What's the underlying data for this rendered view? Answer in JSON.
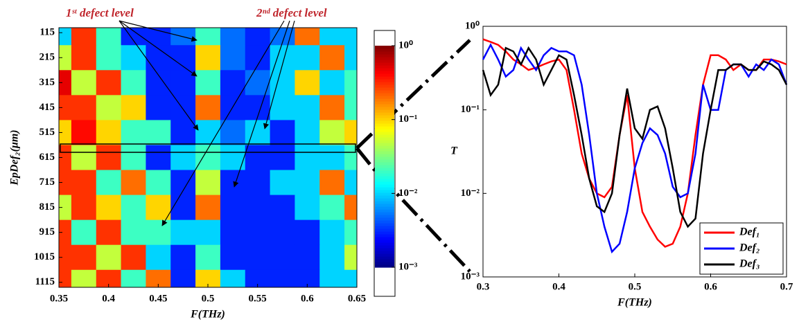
{
  "chart_data": [
    {
      "type": "heatmap",
      "x": [
        0.35,
        0.375,
        0.4,
        0.425,
        0.45,
        0.475,
        0.5,
        0.525,
        0.55,
        0.575,
        0.6,
        0.625,
        0.65
      ],
      "y": [
        115,
        215,
        315,
        415,
        515,
        615,
        715,
        815,
        915,
        1015,
        1115
      ],
      "z": [
        [
          0.01,
          0.3,
          0.02,
          0.003,
          0.003,
          0.005,
          0.02,
          0.005,
          0.003,
          0.005,
          0.2,
          0.01,
          0.01
        ],
        [
          0.05,
          0.3,
          0.02,
          0.01,
          0.003,
          0.003,
          0.1,
          0.005,
          0.003,
          0.01,
          0.01,
          0.2,
          0.01
        ],
        [
          0.5,
          0.05,
          0.3,
          0.02,
          0.003,
          0.003,
          0.02,
          0.003,
          0.005,
          0.01,
          0.1,
          0.01,
          0.02
        ],
        [
          0.3,
          0.3,
          0.05,
          0.1,
          0.003,
          0.003,
          0.2,
          0.003,
          0.003,
          0.01,
          0.01,
          0.2,
          0.02
        ],
        [
          0.1,
          0.4,
          0.1,
          0.02,
          0.02,
          0.003,
          0.01,
          0.005,
          0.01,
          0.003,
          0.01,
          0.05,
          0.1
        ],
        [
          0.3,
          0.05,
          0.3,
          0.02,
          0.003,
          0.01,
          0.02,
          0.01,
          0.003,
          0.003,
          0.01,
          0.01,
          0.02
        ],
        [
          0.3,
          0.3,
          0.02,
          0.2,
          0.02,
          0.003,
          0.05,
          0.003,
          0.003,
          0.01,
          0.01,
          0.2,
          0.01
        ],
        [
          0.05,
          0.3,
          0.1,
          0.02,
          0.1,
          0.003,
          0.2,
          0.003,
          0.003,
          0.003,
          0.01,
          0.02,
          0.2
        ],
        [
          0.3,
          0.02,
          0.3,
          0.02,
          0.02,
          0.01,
          0.01,
          0.003,
          0.003,
          0.003,
          0.003,
          0.01,
          0.02
        ],
        [
          0.3,
          0.3,
          0.05,
          0.3,
          0.01,
          0.003,
          0.02,
          0.003,
          0.003,
          0.003,
          0.003,
          0.01,
          0.05
        ],
        [
          0.3,
          0.05,
          0.3,
          0.02,
          0.2,
          0.003,
          0.1,
          0.01,
          0.003,
          0.003,
          0.003,
          0.01,
          0.01
        ]
      ],
      "xlim": [
        0.35,
        0.65
      ],
      "xticks": [
        0.35,
        0.4,
        0.45,
        0.5,
        0.55,
        0.6,
        0.65
      ],
      "ylim": [
        95,
        1135
      ],
      "y_inverted": true,
      "yticks": [
        115,
        215,
        315,
        415,
        515,
        615,
        715,
        815,
        915,
        1015,
        1115
      ],
      "x_label": "F(THz)",
      "y_label": "EpDef₂(μm)",
      "colormap": "jet",
      "colorbar": {
        "lim": [
          0.001,
          1
        ],
        "log": true,
        "ticks": [
          {
            "value": 1,
            "label": "10⁰"
          },
          {
            "value": 0.1,
            "label": "10⁻¹"
          },
          {
            "value": 0.01,
            "label": "10⁻²"
          },
          {
            "value": 0.001,
            "label": "10⁻³"
          }
        ]
      },
      "annotations": [
        "1ˢᵗ defect level",
        "2ⁿᵈ defect level"
      ]
    },
    {
      "type": "line",
      "x": [
        0.3,
        0.31,
        0.32,
        0.33,
        0.34,
        0.35,
        0.36,
        0.37,
        0.38,
        0.39,
        0.4,
        0.41,
        0.42,
        0.43,
        0.44,
        0.45,
        0.46,
        0.47,
        0.48,
        0.49,
        0.5,
        0.51,
        0.52,
        0.53,
        0.54,
        0.55,
        0.56,
        0.57,
        0.58,
        0.59,
        0.6,
        0.61,
        0.62,
        0.63,
        0.64,
        0.65,
        0.66,
        0.67,
        0.68,
        0.69,
        0.7
      ],
      "series": [
        {
          "name": "Def₁",
          "color": "#ff0000",
          "values": [
            0.7,
            0.65,
            0.6,
            0.5,
            0.4,
            0.35,
            0.3,
            0.32,
            0.35,
            0.38,
            0.4,
            0.3,
            0.1,
            0.03,
            0.015,
            0.01,
            0.009,
            0.012,
            0.05,
            0.15,
            0.02,
            0.006,
            0.004,
            0.0028,
            0.0023,
            0.0025,
            0.004,
            0.01,
            0.05,
            0.2,
            0.45,
            0.45,
            0.4,
            0.3,
            0.35,
            0.3,
            0.3,
            0.4,
            0.4,
            0.38,
            0.35
          ]
        },
        {
          "name": "Def₂",
          "color": "#0000ff",
          "values": [
            0.4,
            0.6,
            0.4,
            0.25,
            0.3,
            0.55,
            0.4,
            0.3,
            0.45,
            0.55,
            0.5,
            0.5,
            0.45,
            0.2,
            0.05,
            0.01,
            0.004,
            0.002,
            0.0025,
            0.006,
            0.02,
            0.04,
            0.06,
            0.05,
            0.03,
            0.012,
            0.009,
            0.01,
            0.03,
            0.2,
            0.1,
            0.1,
            0.3,
            0.35,
            0.35,
            0.25,
            0.35,
            0.3,
            0.4,
            0.35,
            0.2
          ]
        },
        {
          "name": "Def₃",
          "color": "#000000",
          "values": [
            0.3,
            0.15,
            0.2,
            0.55,
            0.5,
            0.35,
            0.55,
            0.4,
            0.2,
            0.3,
            0.45,
            0.4,
            0.15,
            0.05,
            0.015,
            0.007,
            0.006,
            0.01,
            0.05,
            0.18,
            0.06,
            0.045,
            0.1,
            0.11,
            0.06,
            0.02,
            0.006,
            0.004,
            0.005,
            0.03,
            0.1,
            0.3,
            0.3,
            0.35,
            0.35,
            0.3,
            0.3,
            0.38,
            0.35,
            0.3,
            0.2
          ]
        }
      ],
      "xlim": [
        0.3,
        0.7
      ],
      "xticks": [
        0.3,
        0.4,
        0.5,
        0.6,
        0.7
      ],
      "ylim": [
        0.001,
        1
      ],
      "log_y": true,
      "yticks": [
        {
          "value": 1,
          "label": "10⁰"
        },
        {
          "value": 0.1,
          "label": "10⁻¹"
        },
        {
          "value": 0.01,
          "label": "10⁻²"
        },
        {
          "value": 0.001,
          "label": "10⁻³"
        }
      ],
      "x_label": "F(THz)",
      "y_label": "T",
      "legend": "lower right"
    }
  ]
}
